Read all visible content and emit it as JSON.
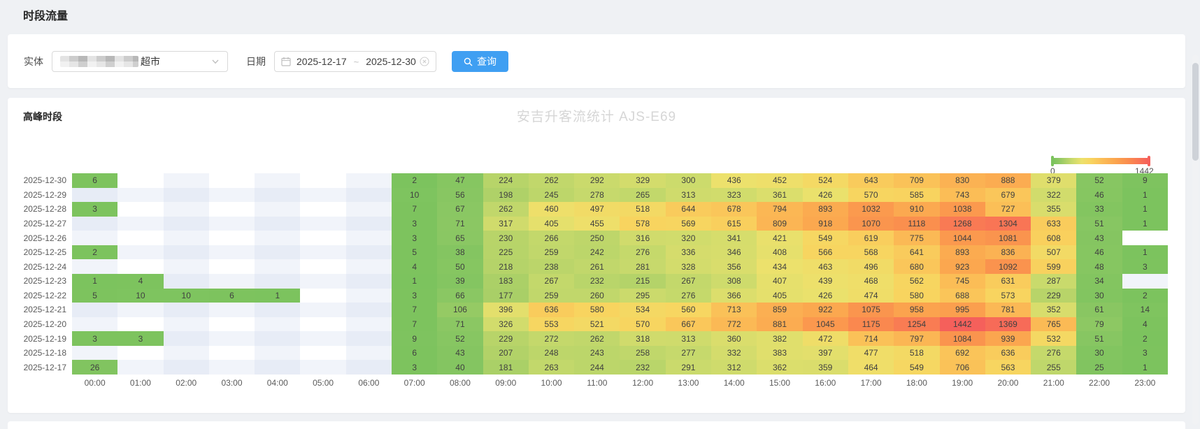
{
  "header": {
    "title": "时段流量"
  },
  "filter_bar": {
    "entity": {
      "label": "实体",
      "value_visible": "超市"
    },
    "date": {
      "label": "日期",
      "start": "2025-12-17",
      "separator": "~",
      "end": "2025-12-30"
    },
    "query_button": {
      "label": "查询"
    }
  },
  "peak_section": {
    "title": "高峰时段"
  },
  "colors": {
    "accent_blue": "#3f9ff2",
    "heat_scale_positions": [
      0,
      0.05,
      0.12,
      0.2,
      0.3,
      0.4,
      0.52,
      0.66,
      0.8,
      0.9,
      1
    ],
    "heat_scale_colors": [
      "#7cc35e",
      "#8bc763",
      "#a8cf67",
      "#c9da6c",
      "#ece16c",
      "#f8d45f",
      "#fbbc56",
      "#fba44e",
      "#fa8b4e",
      "#f97655",
      "#f5605b"
    ],
    "empty_cell_tints": [
      "#ffffff",
      "#f1f4fa",
      "#e7ecf6"
    ]
  },
  "chart_data": {
    "type": "heatmap",
    "title": "安吉升客流统计 AJS-E69",
    "xlabel": "",
    "ylabel": "",
    "grid": false,
    "legend_position": "top-right",
    "legend": {
      "min": 0,
      "max": 1442,
      "min_label": "0",
      "max_label": "1442"
    },
    "x_categories": [
      "00:00",
      "01:00",
      "02:00",
      "03:00",
      "04:00",
      "05:00",
      "06:00",
      "07:00",
      "08:00",
      "09:00",
      "10:00",
      "11:00",
      "12:00",
      "13:00",
      "14:00",
      "15:00",
      "16:00",
      "17:00",
      "18:00",
      "19:00",
      "20:00",
      "21:00",
      "22:00",
      "23:00"
    ],
    "series": [
      {
        "date": "2025-12-30",
        "values": [
          6,
          null,
          null,
          null,
          null,
          null,
          null,
          2,
          47,
          224,
          262,
          292,
          329,
          300,
          436,
          452,
          524,
          643,
          709,
          830,
          888,
          379,
          52,
          9
        ]
      },
      {
        "date": "2025-12-29",
        "values": [
          null,
          null,
          null,
          null,
          null,
          null,
          null,
          10,
          56,
          198,
          245,
          278,
          265,
          313,
          323,
          361,
          426,
          570,
          585,
          743,
          679,
          322,
          46,
          1
        ]
      },
      {
        "date": "2025-12-28",
        "values": [
          3,
          null,
          null,
          null,
          null,
          null,
          null,
          7,
          67,
          262,
          460,
          497,
          518,
          644,
          678,
          794,
          893,
          1032,
          910,
          1038,
          727,
          355,
          33,
          1
        ]
      },
      {
        "date": "2025-12-27",
        "values": [
          null,
          null,
          null,
          null,
          null,
          null,
          null,
          3,
          71,
          317,
          405,
          455,
          578,
          569,
          615,
          809,
          918,
          1070,
          1118,
          1268,
          1304,
          633,
          51,
          1
        ]
      },
      {
        "date": "2025-12-26",
        "values": [
          null,
          null,
          null,
          null,
          null,
          null,
          null,
          3,
          65,
          230,
          266,
          250,
          316,
          320,
          341,
          421,
          549,
          619,
          775,
          1044,
          1081,
          608,
          43,
          null
        ]
      },
      {
        "date": "2025-12-25",
        "values": [
          2,
          null,
          null,
          null,
          null,
          null,
          null,
          5,
          38,
          225,
          259,
          242,
          276,
          336,
          346,
          408,
          566,
          568,
          641,
          893,
          836,
          507,
          46,
          1
        ]
      },
      {
        "date": "2025-12-24",
        "values": [
          null,
          null,
          null,
          null,
          null,
          null,
          null,
          4,
          50,
          218,
          238,
          261,
          281,
          328,
          356,
          434,
          463,
          496,
          680,
          923,
          1092,
          599,
          48,
          3
        ]
      },
      {
        "date": "2025-12-23",
        "values": [
          1,
          4,
          null,
          null,
          null,
          null,
          null,
          1,
          39,
          183,
          267,
          232,
          215,
          267,
          308,
          407,
          439,
          468,
          562,
          745,
          631,
          287,
          34,
          null
        ]
      },
      {
        "date": "2025-12-22",
        "values": [
          5,
          10,
          10,
          6,
          1,
          null,
          null,
          3,
          66,
          177,
          259,
          260,
          295,
          276,
          366,
          405,
          426,
          474,
          580,
          688,
          573,
          229,
          30,
          2
        ]
      },
      {
        "date": "2025-12-21",
        "values": [
          null,
          null,
          null,
          null,
          null,
          null,
          null,
          7,
          106,
          396,
          636,
          580,
          534,
          560,
          713,
          859,
          922,
          1075,
          958,
          995,
          781,
          352,
          61,
          14
        ]
      },
      {
        "date": "2025-12-20",
        "values": [
          null,
          null,
          null,
          null,
          null,
          null,
          null,
          7,
          71,
          326,
          553,
          521,
          570,
          667,
          772,
          881,
          1045,
          1175,
          1254,
          1442,
          1369,
          765,
          79,
          4
        ]
      },
      {
        "date": "2025-12-19",
        "values": [
          3,
          3,
          null,
          null,
          null,
          null,
          null,
          9,
          52,
          229,
          272,
          262,
          318,
          313,
          360,
          382,
          472,
          714,
          797,
          1084,
          939,
          532,
          51,
          2
        ]
      },
      {
        "date": "2025-12-18",
        "values": [
          null,
          null,
          null,
          null,
          null,
          null,
          null,
          6,
          43,
          207,
          248,
          243,
          258,
          277,
          332,
          383,
          397,
          477,
          518,
          692,
          636,
          276,
          30,
          3
        ]
      },
      {
        "date": "2025-12-17",
        "values": [
          26,
          null,
          null,
          null,
          null,
          null,
          null,
          3,
          40,
          181,
          263,
          244,
          232,
          291,
          312,
          362,
          359,
          464,
          549,
          706,
          563,
          255,
          25,
          1
        ]
      }
    ]
  }
}
